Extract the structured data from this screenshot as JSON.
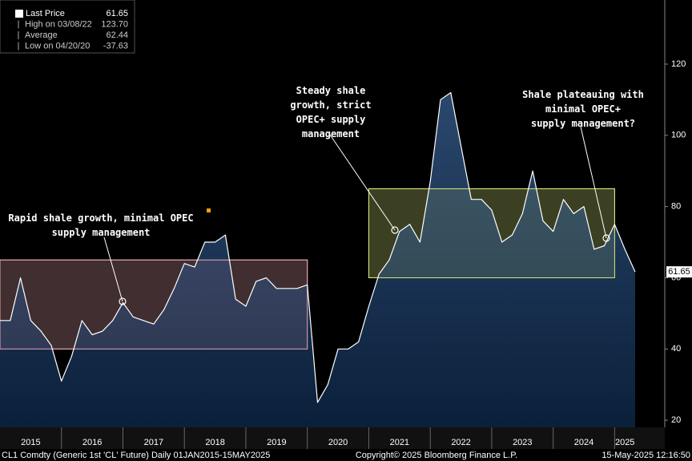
{
  "chart_data": {
    "type": "area-line",
    "legend": [
      {
        "name": "Last Price",
        "value": "61.65"
      },
      {
        "name": "High on 03/08/22",
        "value": "123.70"
      },
      {
        "name": "Average",
        "value": "62.44"
      },
      {
        "name": "Low on 04/20/20",
        "value": "-37.63"
      }
    ],
    "categories": [
      null,
      null,
      null,
      "2015",
      null,
      null,
      null,
      null,
      null,
      "2016",
      null,
      null,
      null,
      null,
      null,
      "2017",
      null,
      null,
      null,
      null,
      null,
      "2018",
      null,
      null,
      null,
      null,
      null,
      "2019",
      null,
      null,
      null,
      null,
      null,
      "2020",
      null,
      null,
      null,
      null,
      null,
      "2021",
      null,
      null,
      null,
      null,
      null,
      "2022",
      null,
      null,
      null,
      null,
      null,
      "2023",
      null,
      null,
      null,
      null,
      null,
      "2024",
      null,
      null,
      null,
      "2025",
      null
    ],
    "series": [
      {
        "name": "Last Price",
        "color": "#ffffff",
        "values": [
          48,
          48,
          60,
          48,
          45,
          41,
          31,
          38,
          48,
          44,
          45,
          48,
          53,
          49,
          48,
          47,
          51,
          57,
          64,
          63,
          70,
          70,
          72,
          54,
          52,
          59,
          60,
          57,
          57,
          57,
          58,
          25,
          30,
          40,
          40,
          42,
          52,
          61,
          65,
          73,
          75,
          70,
          87,
          110,
          112,
          97,
          82,
          82,
          79,
          70,
          72,
          78,
          90,
          76,
          73,
          82,
          78,
          80,
          68,
          69,
          75,
          68,
          61.65
        ]
      }
    ],
    "ylim": [
      18,
      138
    ],
    "yticks": [
      20,
      40,
      60,
      80,
      100,
      120
    ],
    "regions": [
      {
        "from": "2015",
        "to": "2019",
        "range": [
          40,
          65
        ],
        "color": "#e8a6b0"
      },
      {
        "from": "2021",
        "to": "2024",
        "range": [
          60,
          85
        ],
        "color": "#d6e67a"
      }
    ],
    "annotations": [
      "Rapid shale growth, minimal OPEC supply management",
      "Steady shale growth, strict OPEC+ supply management",
      "Shale plateauing with minimal OPEC+ supply management?"
    ],
    "footer": [
      "CL1 Comdty (Generic 1st 'CL' Future)  Daily 01JAN2015-15MAY2025",
      "Copyright© 2025 Bloomberg Finance L.P.",
      "15-May-2025 12:16:50"
    ]
  }
}
